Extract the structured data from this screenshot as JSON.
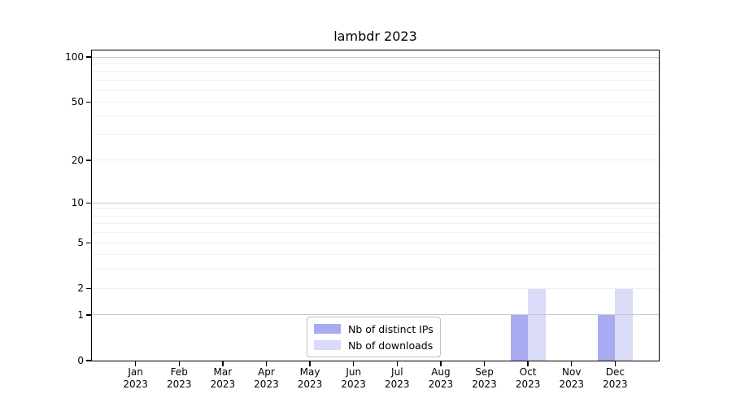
{
  "chart_data": {
    "type": "bar",
    "title": "lambdr 2023",
    "categories": [
      "Jan",
      "Feb",
      "Mar",
      "Apr",
      "May",
      "Jun",
      "Jul",
      "Aug",
      "Sep",
      "Oct",
      "Nov",
      "Dec"
    ],
    "category_year": "2023",
    "series": [
      {
        "name": "Nb of distinct IPs",
        "color": "#a9aaf1",
        "values": [
          0,
          0,
          0,
          0,
          0,
          0,
          0,
          0,
          0,
          1,
          0,
          1
        ]
      },
      {
        "name": "Nb of downloads",
        "color": "#d9dbf8",
        "values": [
          0,
          0,
          0,
          0,
          0,
          0,
          0,
          0,
          0,
          2,
          0,
          2
        ]
      }
    ],
    "yscale": "log1p",
    "ylim": [
      0,
      110.6
    ],
    "y_ticks": [
      0,
      1,
      2,
      5,
      10,
      20,
      50,
      100
    ],
    "grid": {
      "minor": [
        2,
        3,
        4,
        5,
        6,
        7,
        8,
        9,
        20,
        30,
        40,
        50,
        60,
        70,
        80,
        90
      ],
      "major": [
        1,
        10,
        100
      ],
      "minor_color": "#f0f0f0",
      "major_color": "#c9c9c9"
    },
    "legend_position": "lower-center-inside",
    "xlabel": "",
    "ylabel": ""
  }
}
